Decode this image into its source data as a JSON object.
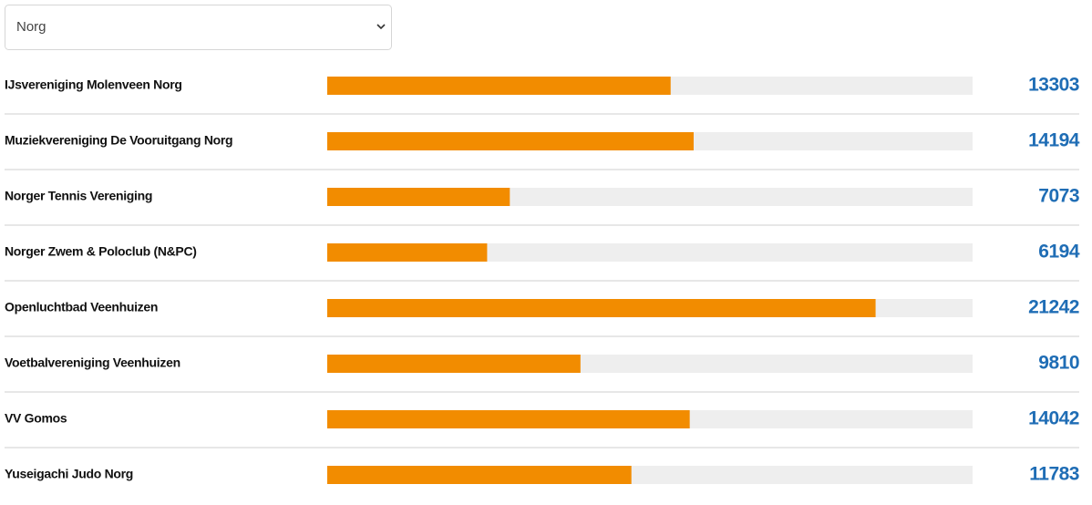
{
  "dropdown": {
    "selected": "Norg"
  },
  "chart_data": {
    "type": "bar",
    "orientation": "horizontal",
    "categories": [
      "IJsvereniging Molenveen Norg",
      "Muziekvereniging De Vooruitgang Norg",
      "Norger Tennis Vereniging",
      "Norger Zwem & Poloclub (N&PC)",
      "Openluchtbad Veenhuizen",
      "Voetbalvereniging Veenhuizen",
      "VV Gomos",
      "Yuseigachi Judo Norg"
    ],
    "values": [
      13303,
      14194,
      7073,
      6194,
      21242,
      9810,
      14042,
      11783
    ],
    "xlim": [
      0,
      25000
    ],
    "color": "#f28c00",
    "track_color": "#eeeeee"
  }
}
